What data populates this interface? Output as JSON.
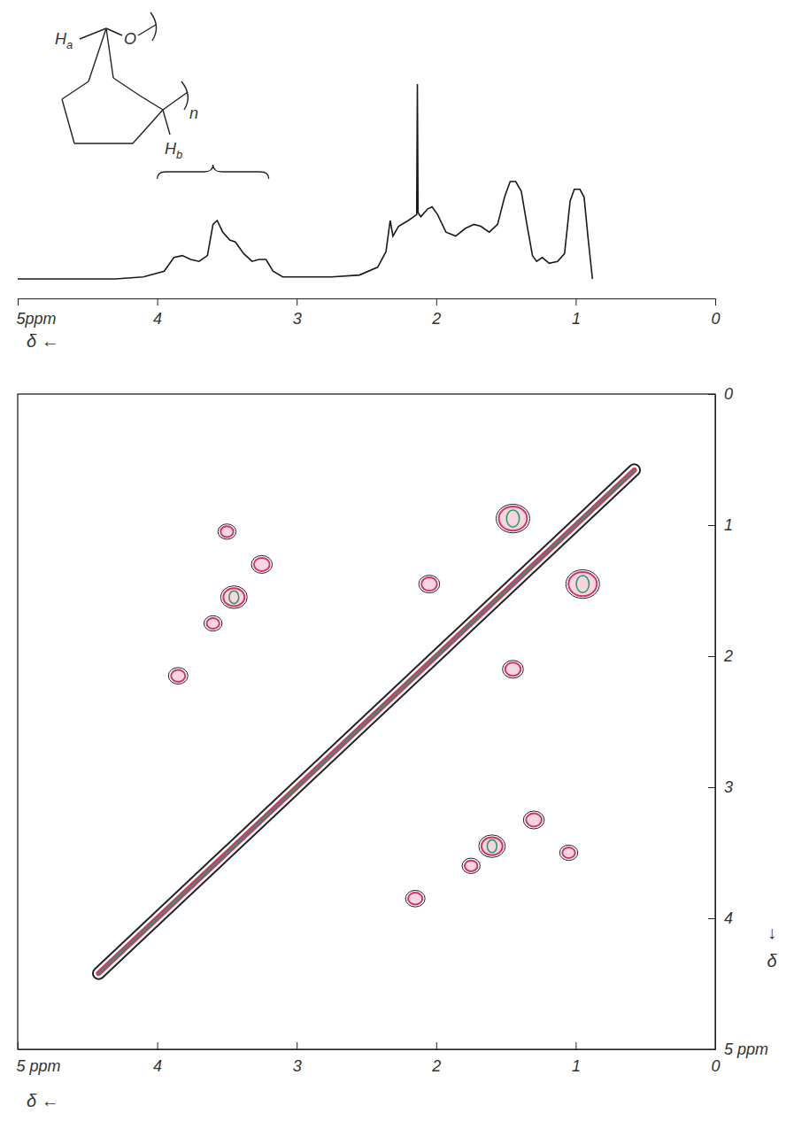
{
  "chart_data": [
    {
      "type": "line",
      "x": [
        5.0,
        4.3,
        4.1,
        3.95,
        3.88,
        3.82,
        3.76,
        3.7,
        3.64,
        3.6,
        3.57,
        3.53,
        3.48,
        3.44,
        3.38,
        3.32,
        3.27,
        3.22,
        3.17,
        3.1,
        2.95,
        2.75,
        2.55,
        2.42,
        2.36,
        2.33,
        2.31,
        2.27,
        2.2,
        2.16,
        2.14,
        2.135,
        2.13,
        2.11,
        2.06,
        2.03,
        1.99,
        1.93,
        1.86,
        1.79,
        1.73,
        1.68,
        1.62,
        1.56,
        1.51,
        1.47,
        1.43,
        1.39,
        1.35,
        1.31,
        1.28,
        1.24,
        1.19,
        1.13,
        1.08,
        1.04,
        1.01,
        0.97,
        0.94,
        0.91,
        0.88
      ],
      "values": [
        0,
        0,
        1,
        4,
        11,
        12,
        10,
        9,
        12,
        28,
        30,
        24,
        20,
        19,
        13,
        9,
        10,
        10,
        4,
        1,
        1,
        1,
        2,
        6,
        14,
        30,
        22,
        27,
        30,
        32,
        33,
        100,
        34,
        32,
        36,
        37,
        33,
        24,
        22,
        26,
        28,
        27,
        24,
        28,
        42,
        50,
        50,
        45,
        28,
        12,
        9,
        11,
        8,
        9,
        13,
        40,
        46,
        46,
        42,
        20,
        0
      ],
      "color": "#1a1a1a",
      "xlim": [
        5,
        0
      ],
      "ylim": [
        -10,
        100
      ],
      "xticks": [
        {
          "value": 5,
          "label": "5ppm"
        },
        4,
        3,
        2,
        1,
        0
      ],
      "xlabel": "δ ←",
      "tick_labels": "x",
      "bracket": [
        4.0,
        3.2
      ],
      "annotations": [
        "Ha",
        "O",
        "Hb",
        "n"
      ]
    },
    {
      "type": "contour",
      "xlim": [
        5,
        0
      ],
      "ylim": [
        0,
        5
      ],
      "xticks": [
        {
          "value": 5,
          "label": "5 ppm"
        },
        4,
        3,
        2,
        1,
        0
      ],
      "yticks": [
        0,
        1,
        2,
        3,
        4,
        {
          "value": 5,
          "label": "5 ppm"
        }
      ],
      "xlabel": "δ ←",
      "ylabel": "↓ δ",
      "series": [
        {
          "type": "line",
          "x": [
            4.42,
            0.58
          ],
          "values": [
            4.42,
            0.58
          ],
          "color": "#2a9d5c"
        },
        {
          "type": "scatter",
          "x": [
            3.5,
            3.25,
            3.45,
            3.6,
            3.85,
            1.05,
            1.3,
            1.6,
            1.75,
            2.15,
            1.45,
            0.95,
            2.05,
            1.45
          ],
          "values": [
            1.05,
            1.3,
            1.55,
            1.75,
            2.15,
            3.5,
            3.25,
            3.45,
            3.6,
            3.85,
            0.95,
            1.45,
            1.45,
            2.1
          ],
          "sizes": [
            0.8,
            1.2,
            2,
            0.8,
            1,
            0.8,
            1.2,
            2,
            0.8,
            1,
            3,
            3,
            1.2,
            1.2
          ],
          "color": "#d6336c"
        }
      ]
    }
  ]
}
